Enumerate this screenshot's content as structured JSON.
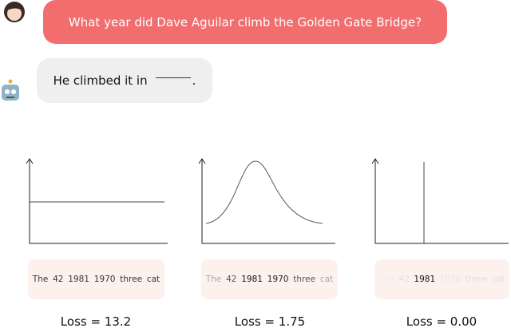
{
  "conversation": {
    "user": "What year did Dave Aguilar climb the Golden Gate Bridge?",
    "assistant_before_blank": "He climbed it in",
    "assistant_after_blank": "."
  },
  "panels": [
    {
      "tokens": [
        {
          "text": "The",
          "color": "#333333"
        },
        {
          "text": "42",
          "color": "#333333"
        },
        {
          "text": "1981",
          "color": "#333333"
        },
        {
          "text": "1970",
          "color": "#333333"
        },
        {
          "text": "three",
          "color": "#333333"
        },
        {
          "text": "cat",
          "color": "#333333"
        }
      ],
      "loss": "Loss = 13.2"
    },
    {
      "tokens": [
        {
          "text": "The",
          "color": "#a9a9a9"
        },
        {
          "text": "42",
          "color": "#555555"
        },
        {
          "text": "1981",
          "color": "#111111"
        },
        {
          "text": "1970",
          "color": "#222222"
        },
        {
          "text": "three",
          "color": "#555555"
        },
        {
          "text": "cat",
          "color": "#a9a9a9"
        }
      ],
      "loss": "Loss = 1.75"
    },
    {
      "tokens": [
        {
          "text": "The",
          "color": "#eeeeee"
        },
        {
          "text": "42",
          "color": "#e0e0e0"
        },
        {
          "text": "1981",
          "color": "#111111"
        },
        {
          "text": "1970",
          "color": "#e6e6e6"
        },
        {
          "text": "three",
          "color": "#e0e0e0"
        },
        {
          "text": "cat",
          "color": "#e0e0e0"
        }
      ],
      "loss": "Loss = 0.00"
    }
  ]
}
